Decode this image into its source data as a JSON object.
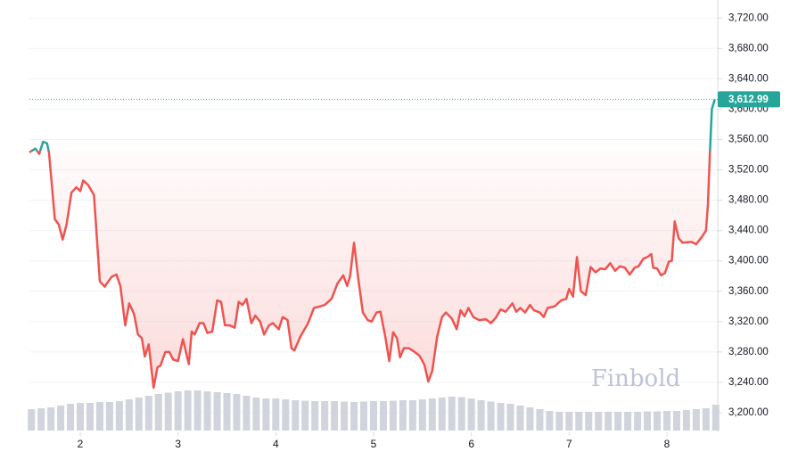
{
  "chart_data": {
    "type": "baseline",
    "watermark": "Finbold",
    "xlim": [
      1.48,
      8.52
    ],
    "xticks": [
      2,
      3,
      4,
      5,
      6,
      7,
      8
    ],
    "ylim": [
      3180,
      3725
    ],
    "yticks": [
      {
        "value": 3200,
        "label": "3,200.00"
      },
      {
        "value": 3240,
        "label": "3,240.00"
      },
      {
        "value": 3280,
        "label": "3,280.00"
      },
      {
        "value": 3320,
        "label": "3,320.00"
      },
      {
        "value": 3360,
        "label": "3,360.00"
      },
      {
        "value": 3400,
        "label": "3,400.00"
      },
      {
        "value": 3440,
        "label": "3,440.00"
      },
      {
        "value": 3480,
        "label": "3,480.00"
      },
      {
        "value": 3520,
        "label": "3,520.00"
      },
      {
        "value": 3560,
        "label": "3,560.00"
      },
      {
        "value": 3600,
        "label": "3,600.00"
      },
      {
        "value": 3640,
        "label": "3,640.00"
      },
      {
        "value": 3680,
        "label": "3,680.00"
      },
      {
        "value": 3720,
        "label": "3,720.00"
      }
    ],
    "grid": true,
    "baseline": 3545,
    "up_color": "#26a69a",
    "down_color": "#ef5350",
    "last_price": {
      "value": 3612.99,
      "label": "3,612.99"
    },
    "x": [
      1.48,
      1.54,
      1.58,
      1.62,
      1.66,
      1.68,
      1.74,
      1.78,
      1.82,
      1.86,
      1.91,
      1.96,
      2.0,
      2.03,
      2.08,
      2.14,
      2.2,
      2.25,
      2.32,
      2.37,
      2.41,
      2.46,
      2.5,
      2.55,
      2.59,
      2.63,
      2.66,
      2.7,
      2.75,
      2.79,
      2.82,
      2.87,
      2.91,
      2.95,
      3.0,
      3.05,
      3.11,
      3.14,
      3.17,
      3.22,
      3.26,
      3.3,
      3.35,
      3.4,
      3.44,
      3.48,
      3.53,
      3.58,
      3.62,
      3.66,
      3.7,
      3.75,
      3.79,
      3.84,
      3.88,
      3.93,
      3.97,
      4.03,
      4.07,
      4.12,
      4.16,
      4.19,
      4.25,
      4.33,
      4.39,
      4.45,
      4.5,
      4.57,
      4.63,
      4.69,
      4.73,
      4.76,
      4.8,
      4.84,
      4.89,
      4.94,
      4.98,
      5.03,
      5.07,
      5.12,
      5.16,
      5.2,
      5.24,
      5.27,
      5.31,
      5.36,
      5.42,
      5.47,
      5.52,
      5.56,
      5.6,
      5.65,
      5.7,
      5.74,
      5.8,
      5.85,
      5.89,
      5.93,
      5.97,
      6.02,
      6.08,
      6.15,
      6.2,
      6.25,
      6.3,
      6.35,
      6.42,
      6.46,
      6.5,
      6.55,
      6.6,
      6.64,
      6.7,
      6.74,
      6.78,
      6.85,
      6.92,
      6.97,
      7.0,
      7.04,
      7.08,
      7.12,
      7.17,
      7.22,
      7.27,
      7.32,
      7.37,
      7.42,
      7.47,
      7.52,
      7.57,
      7.62,
      7.67,
      7.71,
      7.76,
      7.8,
      7.84,
      7.86,
      7.9,
      7.94,
      7.98,
      8.02,
      8.05,
      8.08,
      8.12,
      8.16,
      8.25,
      8.3,
      8.36,
      8.4,
      8.42,
      8.44,
      8.46,
      8.49
    ],
    "values": [
      3543,
      3548,
      3541,
      3557,
      3555,
      3543,
      3455,
      3448,
      3428,
      3448,
      3490,
      3497,
      3492,
      3506,
      3500,
      3487,
      3373,
      3366,
      3379,
      3382,
      3367,
      3315,
      3344,
      3330,
      3303,
      3298,
      3274,
      3290,
      3233,
      3260,
      3262,
      3280,
      3280,
      3270,
      3268,
      3297,
      3264,
      3307,
      3303,
      3318,
      3318,
      3305,
      3307,
      3348,
      3346,
      3315,
      3315,
      3312,
      3346,
      3342,
      3350,
      3318,
      3328,
      3320,
      3303,
      3315,
      3318,
      3310,
      3326,
      3322,
      3285,
      3282,
      3300,
      3318,
      3338,
      3340,
      3342,
      3350,
      3370,
      3381,
      3367,
      3380,
      3424,
      3380,
      3332,
      3322,
      3320,
      3332,
      3333,
      3300,
      3268,
      3306,
      3298,
      3273,
      3285,
      3285,
      3280,
      3275,
      3263,
      3241,
      3255,
      3300,
      3326,
      3332,
      3324,
      3310,
      3335,
      3327,
      3338,
      3326,
      3322,
      3323,
      3318,
      3325,
      3336,
      3333,
      3344,
      3333,
      3338,
      3332,
      3342,
      3335,
      3332,
      3326,
      3338,
      3340,
      3348,
      3350,
      3363,
      3353,
      3405,
      3360,
      3355,
      3392,
      3385,
      3390,
      3389,
      3397,
      3387,
      3393,
      3391,
      3382,
      3391,
      3393,
      3403,
      3405,
      3409,
      3391,
      3390,
      3381,
      3384,
      3399,
      3400,
      3452,
      3430,
      3424,
      3425,
      3422,
      3432,
      3440,
      3475,
      3543,
      3600,
      3612.99
    ],
    "volume": {
      "color": "#d1d4dc",
      "vlim": [
        0,
        100
      ],
      "x": [
        1.5,
        1.6,
        1.7,
        1.8,
        1.9,
        2.0,
        2.1,
        2.2,
        2.3,
        2.4,
        2.5,
        2.6,
        2.7,
        2.8,
        2.9,
        3.0,
        3.1,
        3.2,
        3.3,
        3.4,
        3.5,
        3.6,
        3.7,
        3.8,
        3.9,
        4.0,
        4.1,
        4.2,
        4.3,
        4.4,
        4.5,
        4.6,
        4.7,
        4.8,
        4.9,
        5.0,
        5.1,
        5.2,
        5.3,
        5.4,
        5.5,
        5.6,
        5.7,
        5.8,
        5.9,
        6.0,
        6.1,
        6.2,
        6.3,
        6.4,
        6.5,
        6.6,
        6.7,
        6.8,
        6.9,
        7.0,
        7.1,
        7.2,
        7.3,
        7.4,
        7.5,
        7.6,
        7.7,
        7.8,
        7.9,
        8.0,
        8.1,
        8.2,
        8.3,
        8.4,
        8.5
      ],
      "values": [
        48,
        50,
        52,
        56,
        60,
        62,
        62,
        64,
        64,
        66,
        70,
        74,
        78,
        82,
        85,
        88,
        90,
        90,
        88,
        86,
        84,
        82,
        78,
        74,
        72,
        72,
        70,
        68,
        67,
        66,
        66,
        66,
        65,
        64,
        65,
        66,
        66,
        67,
        68,
        68,
        70,
        72,
        74,
        76,
        75,
        72,
        68,
        65,
        62,
        60,
        56,
        52,
        48,
        44,
        42,
        42,
        42,
        42,
        42,
        42,
        42,
        42,
        42,
        43,
        43,
        44,
        44,
        46,
        48,
        50,
        58
      ]
    }
  }
}
